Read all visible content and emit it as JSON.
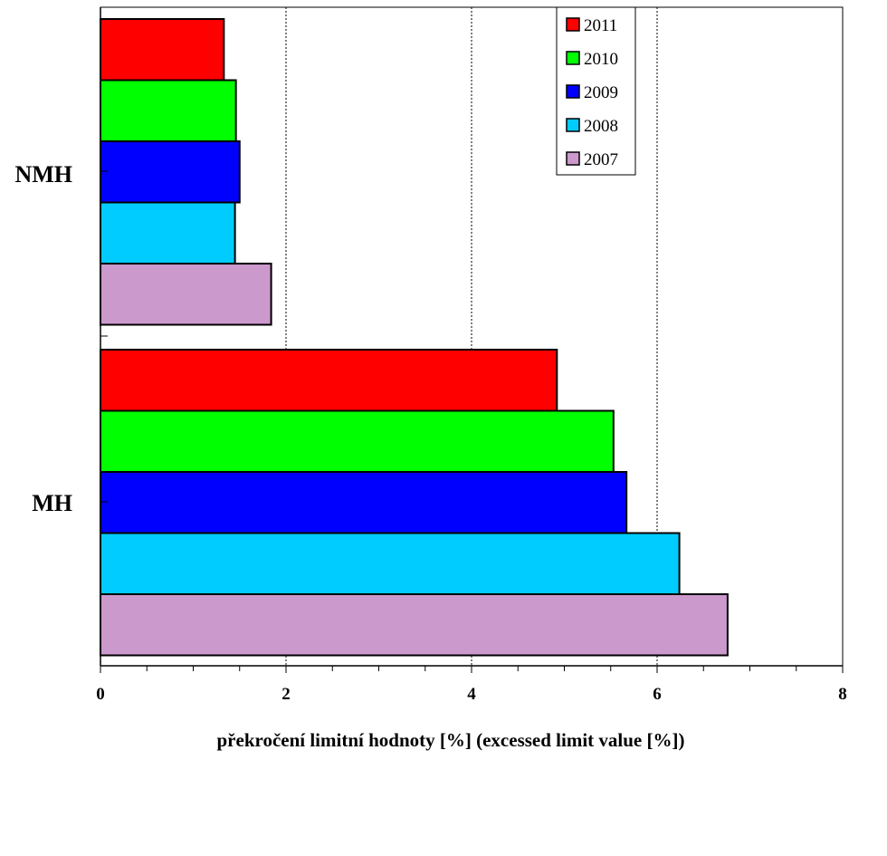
{
  "chart_data": {
    "type": "bar",
    "orientation": "horizontal",
    "categories": [
      "NMH",
      "MH"
    ],
    "series": [
      {
        "name": "2011",
        "color": "#ff0000",
        "values": [
          1.33,
          4.92
        ]
      },
      {
        "name": "2010",
        "color": "#00ff00",
        "values": [
          1.46,
          5.53
        ]
      },
      {
        "name": "2009",
        "color": "#0000ff",
        "values": [
          1.5,
          5.67
        ]
      },
      {
        "name": "2008",
        "color": "#00ccff",
        "values": [
          1.45,
          6.24
        ]
      },
      {
        "name": "2007",
        "color": "#cc99cc",
        "values": [
          1.84,
          6.76
        ]
      }
    ],
    "xlabel": "překročení limitní hodnoty [%]  (excessed limit value [%])",
    "ylabel": "",
    "xlim": [
      0,
      8
    ],
    "xticks": [
      "0",
      "2",
      "4",
      "6",
      "8"
    ],
    "grid": "vertical dotted at major ticks",
    "legend_position": "top-right"
  }
}
